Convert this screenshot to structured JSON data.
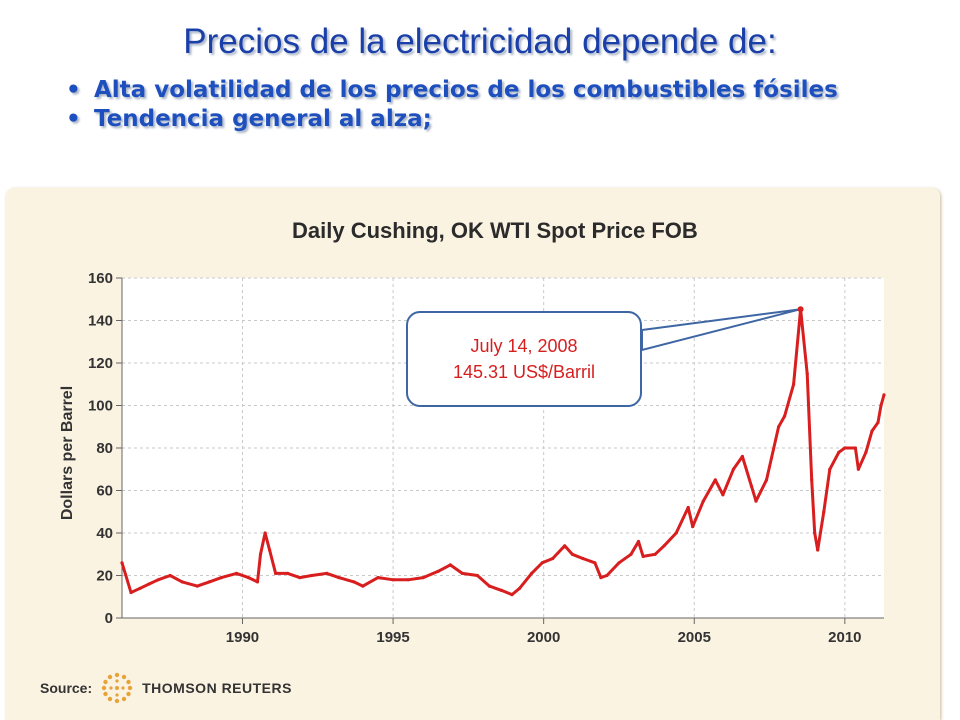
{
  "slide": {
    "title": "Precios de la electricidad depende de:",
    "bullets": [
      "Alta volatilidad de los precios de los combustibles fósiles",
      "Tendencia general al alza;"
    ]
  },
  "chart_data": {
    "type": "line",
    "title": "Daily Cushing, OK WTI Spot Price FOB",
    "ylabel": "Dollars per Barrel",
    "xlabel": "",
    "ylim": [
      0,
      160
    ],
    "xlim": [
      1986,
      2011.3
    ],
    "y_ticks": [
      0,
      20,
      40,
      60,
      80,
      100,
      120,
      140,
      160
    ],
    "x_ticks": [
      1990,
      1995,
      2000,
      2005,
      2010
    ],
    "grid": true,
    "line_color": "#d81e1e",
    "series": [
      {
        "values": [
          [
            1986.0,
            26
          ],
          [
            1986.3,
            12
          ],
          [
            1986.6,
            14
          ],
          [
            1986.9,
            16
          ],
          [
            1987.2,
            18
          ],
          [
            1987.6,
            20
          ],
          [
            1988.0,
            17
          ],
          [
            1988.5,
            15
          ],
          [
            1988.9,
            17
          ],
          [
            1989.3,
            19
          ],
          [
            1989.8,
            21
          ],
          [
            1990.2,
            19
          ],
          [
            1990.5,
            17
          ],
          [
            1990.6,
            30
          ],
          [
            1990.75,
            40
          ],
          [
            1990.9,
            32
          ],
          [
            1991.1,
            21
          ],
          [
            1991.5,
            21
          ],
          [
            1991.9,
            19
          ],
          [
            1992.3,
            20
          ],
          [
            1992.8,
            21
          ],
          [
            1993.2,
            19
          ],
          [
            1993.7,
            17
          ],
          [
            1994.0,
            15
          ],
          [
            1994.5,
            19
          ],
          [
            1995.0,
            18
          ],
          [
            1995.5,
            18
          ],
          [
            1996.0,
            19
          ],
          [
            1996.5,
            22
          ],
          [
            1996.9,
            25
          ],
          [
            1997.3,
            21
          ],
          [
            1997.8,
            20
          ],
          [
            1998.2,
            15
          ],
          [
            1998.6,
            13
          ],
          [
            1998.95,
            11
          ],
          [
            1999.2,
            14
          ],
          [
            1999.6,
            21
          ],
          [
            1999.95,
            26
          ],
          [
            2000.3,
            28
          ],
          [
            2000.7,
            34
          ],
          [
            2000.95,
            30
          ],
          [
            2001.3,
            28
          ],
          [
            2001.7,
            26
          ],
          [
            2001.9,
            19
          ],
          [
            2002.1,
            20
          ],
          [
            2002.5,
            26
          ],
          [
            2002.9,
            30
          ],
          [
            2003.15,
            36
          ],
          [
            2003.3,
            29
          ],
          [
            2003.7,
            30
          ],
          [
            2004.0,
            34
          ],
          [
            2004.4,
            40
          ],
          [
            2004.8,
            52
          ],
          [
            2004.95,
            43
          ],
          [
            2005.3,
            55
          ],
          [
            2005.7,
            65
          ],
          [
            2005.95,
            58
          ],
          [
            2006.3,
            70
          ],
          [
            2006.6,
            76
          ],
          [
            2006.9,
            62
          ],
          [
            2007.05,
            55
          ],
          [
            2007.4,
            65
          ],
          [
            2007.8,
            90
          ],
          [
            2008.0,
            95
          ],
          [
            2008.3,
            110
          ],
          [
            2008.53,
            145.31
          ],
          [
            2008.75,
            115
          ],
          [
            2008.9,
            65
          ],
          [
            2009.0,
            40
          ],
          [
            2009.1,
            32
          ],
          [
            2009.3,
            50
          ],
          [
            2009.5,
            70
          ],
          [
            2009.8,
            78
          ],
          [
            2010.0,
            80
          ],
          [
            2010.35,
            80
          ],
          [
            2010.45,
            70
          ],
          [
            2010.7,
            78
          ],
          [
            2010.9,
            88
          ],
          [
            2011.1,
            92
          ],
          [
            2011.2,
            100
          ],
          [
            2011.3,
            105
          ]
        ]
      }
    ],
    "annotation": {
      "date": "July 14, 2008",
      "value_text": "145.31 US$/Barril",
      "x": 2008.53,
      "y": 145.31
    }
  },
  "source": {
    "label": "Source:",
    "name": "THOMSON REUTERS"
  }
}
